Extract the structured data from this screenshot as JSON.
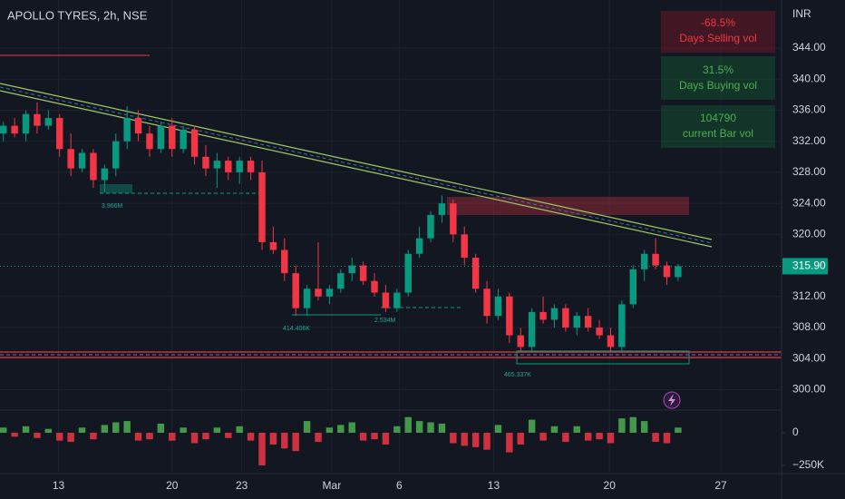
{
  "chart_data": {
    "type": "candlestick",
    "title": "APOLLO TYRES, 2h, NSE",
    "currency": "INR",
    "price_tag": "315.90",
    "up_color": "#089981",
    "down_color": "#f23645",
    "open": [
      333,
      334,
      333,
      335.5,
      334,
      335,
      331,
      328.5,
      330.5,
      327,
      328.5,
      332,
      335,
      333,
      331,
      334,
      331,
      333.5,
      330,
      328.5,
      329.5,
      328,
      329.5,
      328,
      319,
      318,
      315,
      310.5,
      313,
      312,
      313,
      315,
      316,
      314,
      312.5,
      310.5,
      312.5,
      317.5,
      319.5,
      322.5,
      324,
      320,
      317,
      313,
      309.5,
      312,
      307,
      305.5,
      310,
      309,
      310.5,
      308,
      309.5,
      308,
      307,
      305.5,
      311,
      315.5,
      317.5,
      316,
      314.5
    ],
    "high": [
      334.5,
      335,
      336,
      337,
      336,
      335.5,
      333,
      331,
      331,
      329,
      333,
      336.5,
      336,
      334,
      334.5,
      335,
      334,
      334,
      331.5,
      330.5,
      330,
      330,
      330,
      329.5,
      321,
      319.5,
      316,
      313.5,
      319,
      313.5,
      315.5,
      317,
      316.5,
      315,
      313.5,
      313,
      318,
      321,
      323,
      325,
      324.5,
      321,
      317.5,
      314,
      313,
      312.5,
      308,
      310.5,
      312,
      311,
      311,
      310,
      310.5,
      309,
      308,
      311.5,
      316,
      318,
      319.5,
      316.5,
      316.2
    ],
    "low": [
      332,
      332.5,
      332,
      333,
      333.5,
      330,
      327.5,
      328,
      326,
      325.5,
      327.5,
      331,
      332,
      330,
      330.5,
      330,
      330.5,
      329,
      327.5,
      326,
      327,
      326.5,
      327,
      318,
      317.5,
      314,
      309.5,
      309.5,
      311.5,
      311,
      312.5,
      314,
      313.5,
      312,
      310,
      310,
      312,
      317,
      319,
      321.5,
      319,
      316,
      312.5,
      308.5,
      309,
      306,
      305,
      305,
      308.5,
      308,
      307.5,
      307,
      307.5,
      306.5,
      305,
      305,
      310.5,
      314,
      315.5,
      313.5,
      314
    ],
    "close": [
      334,
      333,
      335.5,
      334,
      335,
      331,
      328.5,
      330.5,
      327,
      328.5,
      332,
      335,
      333,
      331,
      334,
      331,
      333.5,
      330,
      328.5,
      329.5,
      328,
      329.5,
      328,
      319,
      318,
      315,
      310.5,
      313,
      312,
      313,
      315,
      316,
      314,
      312.5,
      310.5,
      312.5,
      317.5,
      319.5,
      322.5,
      324,
      320,
      317,
      313,
      309.5,
      312,
      307,
      305.5,
      310,
      309,
      310.5,
      308,
      309.5,
      308,
      307,
      305.5,
      311,
      315.5,
      317.5,
      316,
      314.5,
      315.9
    ],
    "volume": [
      40000,
      -30000,
      50000,
      -40000,
      30000,
      -60000,
      -70000,
      40000,
      -50000,
      60000,
      80000,
      90000,
      -60000,
      -50000,
      70000,
      -60000,
      40000,
      -80000,
      -50000,
      40000,
      -40000,
      50000,
      -60000,
      -250000,
      -90000,
      -120000,
      -140000,
      90000,
      -70000,
      40000,
      60000,
      80000,
      -60000,
      -50000,
      -90000,
      50000,
      120000,
      90000,
      80000,
      70000,
      -80000,
      -100000,
      -110000,
      -130000,
      60000,
      -150000,
      -90000,
      100000,
      -60000,
      50000,
      -70000,
      50000,
      -60000,
      -50000,
      -80000,
      110000,
      120000,
      90000,
      -70000,
      -80000,
      40000
    ],
    "xlim": [
      -0.3,
      69.2
    ],
    "xticks": [
      {
        "value": 4.9,
        "label": "13"
      },
      {
        "value": 15,
        "label": "20"
      },
      {
        "value": 21.2,
        "label": "23"
      },
      {
        "value": 29.2,
        "label": "Mar"
      },
      {
        "value": 35.2,
        "label": "6"
      },
      {
        "value": 43.6,
        "label": "13"
      },
      {
        "value": 53.9,
        "label": "20"
      },
      {
        "value": 63.8,
        "label": "27"
      }
    ],
    "ylim": [
      297.6,
      350.2
    ],
    "yticks": [
      {
        "value": 300,
        "label": "300.00"
      },
      {
        "value": 304,
        "label": "304.00"
      },
      {
        "value": 308,
        "label": "308.00"
      },
      {
        "value": 312,
        "label": "312.00"
      },
      {
        "value": 320,
        "label": "320.00"
      },
      {
        "value": 324,
        "label": "324.00"
      },
      {
        "value": 328,
        "label": "328.00"
      },
      {
        "value": 332,
        "label": "332.00"
      },
      {
        "value": 336,
        "label": "336.00"
      },
      {
        "value": 340,
        "label": "340.00"
      },
      {
        "value": 344,
        "label": "344.00"
      }
    ],
    "vol_ylim": [
      -299000,
      153000
    ],
    "vol_yticks": [
      0,
      {
        "value": -250000,
        "label": "−250K"
      }
    ],
    "annotations": [
      "3.966M",
      "414.406K",
      "2.534M",
      "465.337K"
    ],
    "panels": [
      {
        "value": "-68.5%",
        "label": "Days Selling vol"
      },
      {
        "value": "31.5%",
        "label": "Days Buying vol"
      },
      {
        "value": "104790",
        "label": "current Bar vol"
      }
    ],
    "grid": true
  }
}
